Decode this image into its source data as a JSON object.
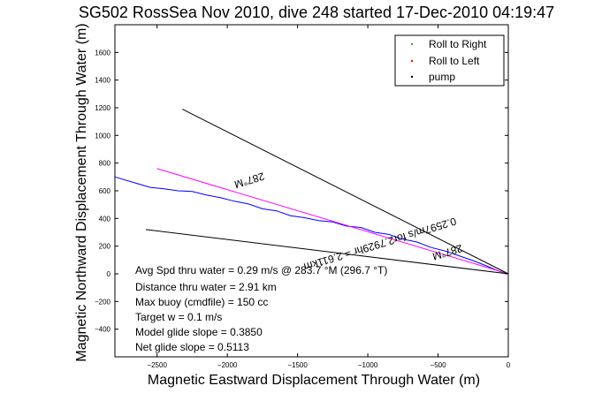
{
  "chart_data": {
    "type": "line",
    "title": "SG502 RossSea Nov 2010, dive 248 started 17-Dec-2010 04:19:47",
    "xlabel": "Magnetic Eastward Displacement Through Water (m)",
    "ylabel": "Magnetic Northward Displacement Through Water (m)",
    "xlim": [
      -2800,
      0
    ],
    "ylim": [
      -600,
      1800
    ],
    "xticks": [
      -2500,
      -2000,
      -1500,
      -1000,
      -500,
      0
    ],
    "yticks": [
      -400,
      -200,
      0,
      200,
      400,
      600,
      800,
      1000,
      1200,
      1400,
      1600
    ],
    "grid": false,
    "legend_position": "top-right",
    "legend": [
      {
        "label": "Roll to Right",
        "color": "#00cc00",
        "marker": "."
      },
      {
        "label": "Roll to Left",
        "color": "#ff0000",
        "marker": "."
      },
      {
        "label": "pump",
        "color": "#000000",
        "marker": "."
      }
    ],
    "series": [
      {
        "color": "#0000ff",
        "x": [
          -2800,
          -2650,
          -2550,
          -2450,
          -2350,
          -2250,
          -2150,
          -2050,
          -1950,
          -1850,
          -1750,
          -1650,
          -1550,
          -1450,
          -1350,
          -1250,
          -1150,
          -1050,
          -950,
          -850,
          -750,
          -650,
          -550,
          -450,
          -350,
          -250,
          -150,
          -80,
          -40,
          0
        ],
        "y": [
          700,
          655,
          625,
          615,
          600,
          595,
          570,
          550,
          525,
          505,
          470,
          455,
          420,
          405,
          385,
          375,
          345,
          335,
          300,
          285,
          250,
          230,
          190,
          165,
          130,
          95,
          55,
          25,
          10,
          0
        ]
      },
      {
        "color": "#ff00ff",
        "x": [
          -2500,
          0
        ],
        "y": [
          760,
          0
        ]
      },
      {
        "color": "#000000",
        "x": [
          -2320,
          0
        ],
        "y": [
          1190,
          0
        ]
      },
      {
        "color": "#000000",
        "x": [
          -2580,
          0
        ],
        "y": [
          320,
          0
        ]
      }
    ],
    "annotations": [
      {
        "text": "287°M",
        "x": -1850,
        "y": 700,
        "angle": 163
      },
      {
        "text": "0.2597m/s for2.7929hr = 2.611km",
        "x": -920,
        "y": 240,
        "angle": 163
      },
      {
        "text": "287°M",
        "x": -440,
        "y": 180,
        "angle": 163
      }
    ],
    "info_lines": [
      "Avg Spd thru water =  0.29 m/s @ 283.7    °M (296.7 °T)",
      "Distance thru water =  2.91 km",
      "Max buoy (cmdfile) = 150 cc",
      "Target w = 0.1 m/s",
      "Model glide slope = 0.3850",
      "Net glide slope = 0.5113"
    ]
  }
}
